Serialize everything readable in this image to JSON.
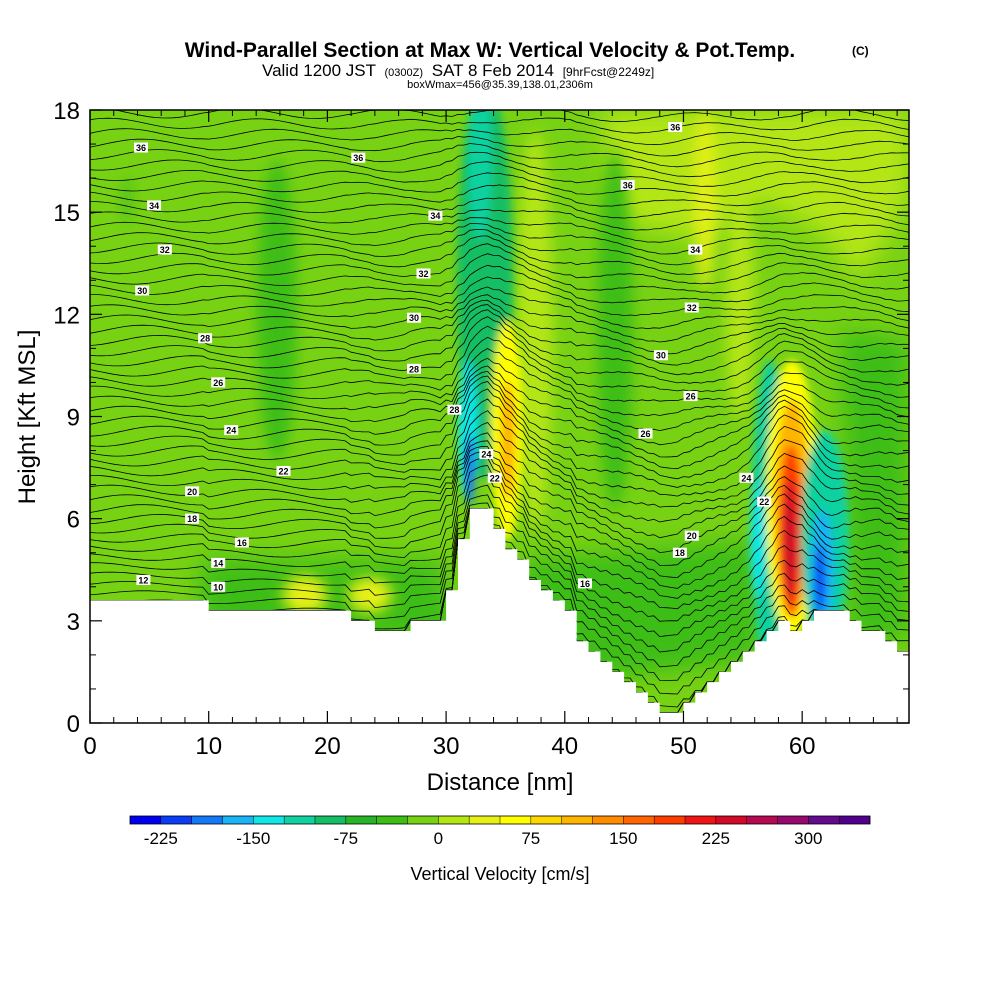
{
  "chart_data": {
    "type": "contour",
    "title": "Wind-Parallel Section at Max W: Vertical Velocity & Pot.Temp.",
    "title_mark": "(C)",
    "subtitle_valid": "Valid 1200 JST",
    "subtitle_utc": "(0300Z)",
    "subtitle_date": "SAT 8 Feb 2014",
    "subtitle_fcst": "[9hrFcst@2249z]",
    "subtitle_box": "boxWmax=456@35.39,138.01,2306m",
    "xlabel": "Distance [nm]",
    "ylabel": "Height [Kft MSL]",
    "xlim": [
      0,
      69
    ],
    "ylim": [
      0,
      18
    ],
    "x_ticks": [
      0,
      10,
      20,
      30,
      40,
      50,
      60
    ],
    "y_ticks": [
      0,
      3,
      6,
      9,
      12,
      15,
      18
    ],
    "colorbar": {
      "title": "Vertical Velocity [cm/s]",
      "min": -250,
      "max": 350,
      "step": 25,
      "tick_values": [
        -225,
        -150,
        -75,
        0,
        75,
        150,
        225,
        300
      ],
      "tick_labels": [
        "-225",
        "-150",
        "-75",
        "0",
        "75",
        "150",
        "225",
        "300"
      ],
      "colors": [
        "#0000f0",
        "#0a3cf5",
        "#1478f5",
        "#18b4f5",
        "#10e6e6",
        "#10d2a0",
        "#14be64",
        "#28b428",
        "#3cbe14",
        "#78d214",
        "#b4e614",
        "#e6f014",
        "#ffff00",
        "#ffd700",
        "#ffb400",
        "#ff8c00",
        "#ff6400",
        "#ff3c00",
        "#f01414",
        "#d20a28",
        "#b40a50",
        "#960a6e",
        "#640a8c",
        "#50008c"
      ]
    },
    "terrain_kft": [
      [
        0,
        3.6
      ],
      [
        10,
        3.6
      ],
      [
        10,
        3.3
      ],
      [
        22,
        3.3
      ],
      [
        22,
        3.0
      ],
      [
        24,
        3.0
      ],
      [
        24,
        2.7
      ],
      [
        27,
        2.7
      ],
      [
        27,
        3.0
      ],
      [
        30,
        3.0
      ],
      [
        30,
        3.9
      ],
      [
        31,
        3.9
      ],
      [
        31,
        5.4
      ],
      [
        32,
        5.4
      ],
      [
        32,
        6.3
      ],
      [
        34,
        6.3
      ],
      [
        34,
        5.7
      ],
      [
        35,
        5.7
      ],
      [
        35,
        5.1
      ],
      [
        36,
        5.1
      ],
      [
        36,
        4.8
      ],
      [
        37,
        4.8
      ],
      [
        37,
        4.2
      ],
      [
        38,
        4.2
      ],
      [
        38,
        3.9
      ],
      [
        39,
        3.9
      ],
      [
        39,
        3.6
      ],
      [
        40,
        3.6
      ],
      [
        40,
        3.3
      ],
      [
        41,
        3.3
      ],
      [
        41,
        2.4
      ],
      [
        42,
        2.4
      ],
      [
        42,
        2.1
      ],
      [
        43,
        2.1
      ],
      [
        43,
        1.8
      ],
      [
        44,
        1.8
      ],
      [
        44,
        1.5
      ],
      [
        45,
        1.5
      ],
      [
        45,
        1.2
      ],
      [
        46,
        1.2
      ],
      [
        46,
        0.9
      ],
      [
        47,
        0.9
      ],
      [
        47,
        0.6
      ],
      [
        48,
        0.6
      ],
      [
        48,
        0.3
      ],
      [
        50,
        0.3
      ],
      [
        50,
        0.6
      ],
      [
        51,
        0.6
      ],
      [
        51,
        0.9
      ],
      [
        52,
        0.9
      ],
      [
        52,
        1.2
      ],
      [
        53,
        1.2
      ],
      [
        53,
        1.5
      ],
      [
        54,
        1.5
      ],
      [
        54,
        1.8
      ],
      [
        55,
        1.8
      ],
      [
        55,
        2.1
      ],
      [
        56,
        2.1
      ],
      [
        56,
        2.4
      ],
      [
        57,
        2.4
      ],
      [
        57,
        2.7
      ],
      [
        58,
        2.7
      ],
      [
        58,
        3.0
      ],
      [
        59,
        3.0
      ],
      [
        59,
        2.7
      ],
      [
        60,
        2.7
      ],
      [
        60,
        3.0
      ],
      [
        61,
        3.0
      ],
      [
        61,
        3.3
      ],
      [
        64,
        3.3
      ],
      [
        64,
        3.0
      ],
      [
        65,
        3.0
      ],
      [
        65,
        2.7
      ],
      [
        67,
        2.7
      ],
      [
        67,
        2.4
      ],
      [
        68,
        2.4
      ],
      [
        68,
        2.1
      ],
      [
        69,
        2.1
      ]
    ],
    "contour_labels": [
      {
        "text": "36",
        "x": 4.3,
        "y": 16.9
      },
      {
        "text": "36",
        "x": 22.6,
        "y": 16.6
      },
      {
        "text": "36",
        "x": 45.3,
        "y": 15.8
      },
      {
        "text": "36",
        "x": 49.3,
        "y": 17.5
      },
      {
        "text": "34",
        "x": 5.4,
        "y": 15.2
      },
      {
        "text": "34",
        "x": 29.1,
        "y": 14.9
      },
      {
        "text": "34",
        "x": 51.0,
        "y": 13.9
      },
      {
        "text": "32",
        "x": 6.3,
        "y": 13.9
      },
      {
        "text": "32",
        "x": 28.1,
        "y": 13.2
      },
      {
        "text": "32",
        "x": 50.7,
        "y": 12.2
      },
      {
        "text": "30",
        "x": 4.4,
        "y": 12.7
      },
      {
        "text": "30",
        "x": 27.3,
        "y": 11.9
      },
      {
        "text": "30",
        "x": 48.1,
        "y": 10.8
      },
      {
        "text": "28",
        "x": 9.7,
        "y": 11.3
      },
      {
        "text": "28",
        "x": 27.3,
        "y": 10.4
      },
      {
        "text": "28",
        "x": 30.7,
        "y": 9.2
      },
      {
        "text": "26",
        "x": 10.8,
        "y": 10.0
      },
      {
        "text": "26",
        "x": 50.6,
        "y": 9.6
      },
      {
        "text": "26",
        "x": 46.8,
        "y": 8.5
      },
      {
        "text": "24",
        "x": 11.9,
        "y": 8.6
      },
      {
        "text": "24",
        "x": 33.4,
        "y": 7.9
      },
      {
        "text": "24",
        "x": 55.3,
        "y": 7.2
      },
      {
        "text": "22",
        "x": 16.3,
        "y": 7.4
      },
      {
        "text": "22",
        "x": 34.1,
        "y": 7.2
      },
      {
        "text": "22",
        "x": 56.8,
        "y": 6.5
      },
      {
        "text": "20",
        "x": 8.6,
        "y": 6.8
      },
      {
        "text": "20",
        "x": 50.7,
        "y": 5.5
      },
      {
        "text": "18",
        "x": 8.6,
        "y": 6.0
      },
      {
        "text": "18",
        "x": 49.7,
        "y": 5.0
      },
      {
        "text": "16",
        "x": 12.8,
        "y": 5.3
      },
      {
        "text": "16",
        "x": 41.7,
        "y": 4.1
      },
      {
        "text": "14",
        "x": 10.8,
        "y": 4.7
      },
      {
        "text": "12",
        "x": 4.5,
        "y": 4.2
      },
      {
        "text": "10",
        "x": 10.8,
        "y": 4.0
      }
    ]
  }
}
